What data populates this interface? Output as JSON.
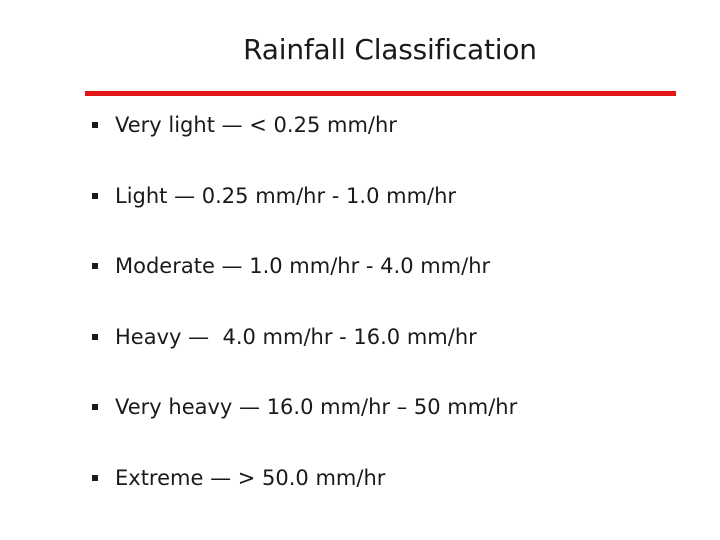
{
  "slide": {
    "title": "Rainfall Classification",
    "accent_color": "#e21616",
    "bullet_icon": "square-bullet",
    "items": [
      {
        "text": "Very light — < 0.25 mm/hr"
      },
      {
        "text": "Light — 0.25 mm/hr - 1.0 mm/hr"
      },
      {
        "text": "Moderate — 1.0 mm/hr - 4.0 mm/hr"
      },
      {
        "text": "Heavy —  4.0 mm/hr - 16.0 mm/hr"
      },
      {
        "text": "Very heavy — 16.0 mm/hr – 50 mm/hr"
      },
      {
        "text": "Extreme — > 50.0 mm/hr"
      }
    ]
  }
}
